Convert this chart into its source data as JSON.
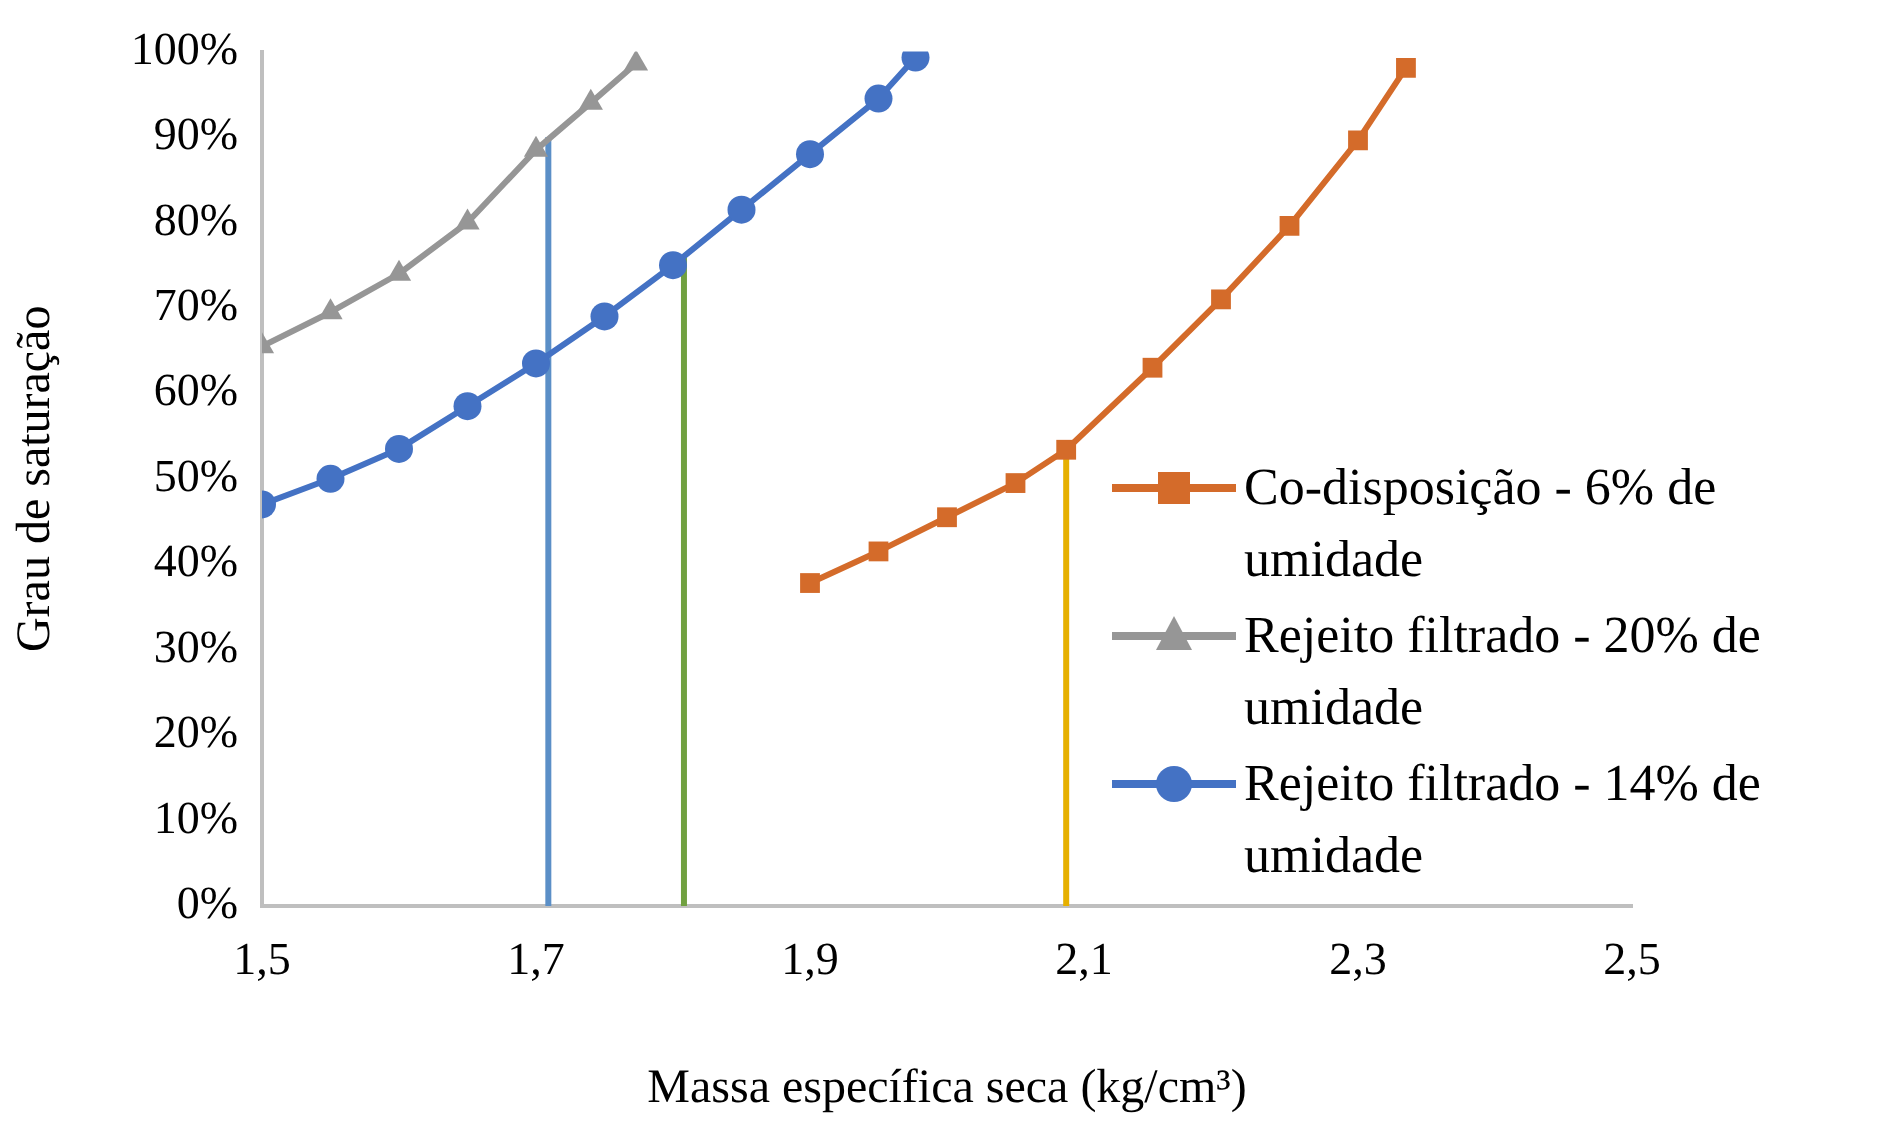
{
  "chart_data": {
    "type": "line",
    "xlabel": "Massa específica seca (kg/cm³)",
    "ylabel": "Grau de saturação",
    "xlim": [
      1.5,
      2.5
    ],
    "xticks": [
      {
        "value": 1.5,
        "label": "1,5"
      },
      {
        "value": 1.7,
        "label": "1,7"
      },
      {
        "value": 1.9,
        "label": "1,9"
      },
      {
        "value": 2.1,
        "label": "2,1"
      },
      {
        "value": 2.3,
        "label": "2,3"
      },
      {
        "value": 2.5,
        "label": "2,5"
      }
    ],
    "ylim": [
      0,
      100
    ],
    "yticks": [
      {
        "value": 0,
        "label": "0%"
      },
      {
        "value": 10,
        "label": "10%"
      },
      {
        "value": 20,
        "label": "20%"
      },
      {
        "value": 30,
        "label": "30%"
      },
      {
        "value": 40,
        "label": "40%"
      },
      {
        "value": 50,
        "label": "50%"
      },
      {
        "value": 60,
        "label": "60%"
      },
      {
        "value": 70,
        "label": "70%"
      },
      {
        "value": 80,
        "label": "80%"
      },
      {
        "value": 90,
        "label": "90%"
      },
      {
        "value": 100,
        "label": "100%"
      }
    ],
    "grid": false,
    "legend": "right",
    "series": [
      {
        "name": "Co-disposição - 6% de umidade",
        "color": "#d46b2a",
        "marker": "square",
        "x": [
          1.9,
          1.95,
          2.0,
          2.05,
          2.087,
          2.15,
          2.2,
          2.25,
          2.3,
          2.335
        ],
        "values": [
          37.8,
          41.5,
          45.5,
          49.5,
          53.4,
          63,
          71,
          79.6,
          89.6,
          98.1
        ]
      },
      {
        "name": "Rejeito filtrado - 20% de umidade",
        "color": "#969696",
        "marker": "triangle",
        "x": [
          1.5,
          1.55,
          1.6,
          1.65,
          1.7,
          1.74,
          1.773
        ],
        "values": [
          65.5,
          69.5,
          74,
          80,
          88.5,
          94,
          98.6
        ]
      },
      {
        "name": "Rejeito filtrado - 14% de umidade",
        "color": "#4472c4",
        "marker": "circle",
        "x": [
          1.5,
          1.55,
          1.6,
          1.65,
          1.7,
          1.75,
          1.8,
          1.85,
          1.9,
          1.95,
          1.977
        ],
        "values": [
          47,
          50,
          53.5,
          58.5,
          63.5,
          69,
          75,
          81.5,
          88,
          94.5,
          99.3
        ]
      },
      {
        "color": "#5b8fc7",
        "marker": "none",
        "x": [
          1.709,
          1.709
        ],
        "values": [
          0,
          90
        ]
      },
      {
        "color": "#70a040",
        "marker": "none",
        "x": [
          1.808,
          1.808
        ],
        "values": [
          0,
          76
        ]
      },
      {
        "color": "#e6b000",
        "marker": "none",
        "x": [
          2.087,
          2.087
        ],
        "values": [
          0,
          53.4
        ]
      }
    ]
  }
}
